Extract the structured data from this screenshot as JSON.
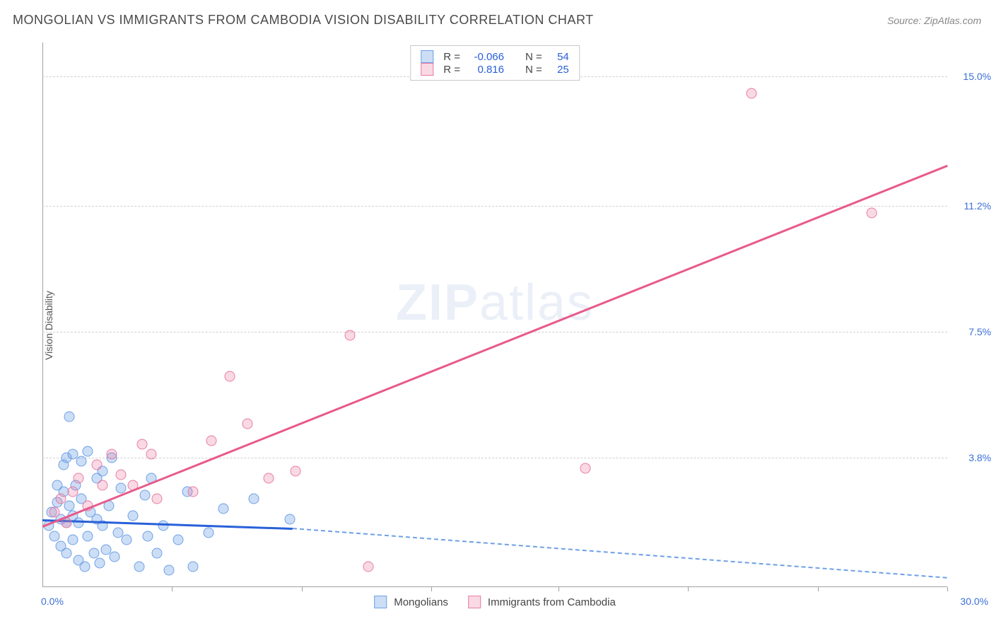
{
  "header": {
    "title": "MONGOLIAN VS IMMIGRANTS FROM CAMBODIA VISION DISABILITY CORRELATION CHART",
    "source": "Source: ZipAtlas.com"
  },
  "ylabel": "Vision Disability",
  "watermark": {
    "zip": "ZIP",
    "atlas": "atlas"
  },
  "axes": {
    "xlim": [
      0,
      30
    ],
    "ylim": [
      0,
      16
    ],
    "x_origin_label": "0.0%",
    "x_max_label": "30.0%",
    "y_ticks": [
      {
        "value": 3.8,
        "label": "3.8%"
      },
      {
        "value": 7.5,
        "label": "7.5%"
      },
      {
        "value": 11.2,
        "label": "11.2%"
      },
      {
        "value": 15.0,
        "label": "15.0%"
      }
    ],
    "x_tick_positions": [
      4.3,
      8.6,
      12.9,
      17.1,
      21.4,
      25.7,
      30.0
    ],
    "grid_color": "#d0d0d0",
    "axis_color": "#a0a0a0"
  },
  "colors": {
    "series1_fill": "rgba(110,160,230,0.35)",
    "series1_stroke": "#6ea0e6",
    "series1_line": "#2860d8",
    "series1_dash_line": "#6ea0e6",
    "series2_fill": "rgba(235,130,165,0.30)",
    "series2_stroke": "#e87ca4",
    "series2_line": "#e85a8a",
    "text_blue": "#2860d8"
  },
  "legend_top": {
    "rows": [
      {
        "swatch_fill": "rgba(110,160,230,0.35)",
        "swatch_stroke": "#6ea0e6",
        "r_label": "R =",
        "r_value": "-0.066",
        "n_label": "N =",
        "n_value": "54"
      },
      {
        "swatch_fill": "rgba(235,130,165,0.30)",
        "swatch_stroke": "#e87ca4",
        "r_label": "R =",
        "r_value": "0.816",
        "n_label": "N =",
        "n_value": "25"
      }
    ]
  },
  "legend_bottom": {
    "items": [
      {
        "swatch_fill": "rgba(110,160,230,0.35)",
        "swatch_stroke": "#6ea0e6",
        "label": "Mongolians"
      },
      {
        "swatch_fill": "rgba(235,130,165,0.30)",
        "swatch_stroke": "#e87ca4",
        "label": "Immigrants from Cambodia"
      }
    ]
  },
  "series": [
    {
      "name": "Mongolians",
      "fill": "rgba(110,160,230,0.35)",
      "stroke": "#6ea0e6",
      "trend": {
        "x1": 0,
        "y1": 2.0,
        "x2": 8.3,
        "y2": 1.75,
        "solid_color": "#2860d8",
        "extend_to_x": 30,
        "extend_y": 0.3,
        "dash_color": "#6ea0e6"
      },
      "points": [
        [
          0.2,
          1.8
        ],
        [
          0.3,
          2.2
        ],
        [
          0.4,
          1.5
        ],
        [
          0.5,
          2.5
        ],
        [
          0.5,
          3.0
        ],
        [
          0.6,
          1.2
        ],
        [
          0.6,
          2.0
        ],
        [
          0.7,
          2.8
        ],
        [
          0.7,
          3.6
        ],
        [
          0.8,
          1.0
        ],
        [
          0.8,
          1.9
        ],
        [
          0.8,
          3.8
        ],
        [
          0.9,
          5.0
        ],
        [
          0.9,
          2.4
        ],
        [
          1.0,
          1.4
        ],
        [
          1.0,
          2.1
        ],
        [
          1.0,
          3.9
        ],
        [
          1.1,
          3.0
        ],
        [
          1.2,
          0.8
        ],
        [
          1.2,
          1.9
        ],
        [
          1.3,
          2.6
        ],
        [
          1.3,
          3.7
        ],
        [
          1.4,
          0.6
        ],
        [
          1.5,
          1.5
        ],
        [
          1.5,
          4.0
        ],
        [
          1.6,
          2.2
        ],
        [
          1.7,
          1.0
        ],
        [
          1.8,
          3.2
        ],
        [
          1.8,
          2.0
        ],
        [
          1.9,
          0.7
        ],
        [
          2.0,
          1.8
        ],
        [
          2.0,
          3.4
        ],
        [
          2.1,
          1.1
        ],
        [
          2.2,
          2.4
        ],
        [
          2.3,
          3.8
        ],
        [
          2.4,
          0.9
        ],
        [
          2.5,
          1.6
        ],
        [
          2.6,
          2.9
        ],
        [
          2.8,
          1.4
        ],
        [
          3.0,
          2.1
        ],
        [
          3.2,
          0.6
        ],
        [
          3.4,
          2.7
        ],
        [
          3.5,
          1.5
        ],
        [
          3.6,
          3.2
        ],
        [
          3.8,
          1.0
        ],
        [
          4.0,
          1.8
        ],
        [
          4.2,
          0.5
        ],
        [
          4.5,
          1.4
        ],
        [
          4.8,
          2.8
        ],
        [
          5.0,
          0.6
        ],
        [
          5.5,
          1.6
        ],
        [
          6.0,
          2.3
        ],
        [
          7.0,
          2.6
        ],
        [
          8.2,
          2.0
        ]
      ]
    },
    {
      "name": "Immigrants from Cambodia",
      "fill": "rgba(235,130,165,0.30)",
      "stroke": "#e87ca4",
      "trend": {
        "x1": 0,
        "y1": 1.8,
        "x2": 30,
        "y2": 12.4,
        "solid_color": "#e85a8a"
      },
      "points": [
        [
          0.4,
          2.2
        ],
        [
          0.6,
          2.6
        ],
        [
          0.8,
          1.9
        ],
        [
          1.0,
          2.8
        ],
        [
          1.2,
          3.2
        ],
        [
          1.5,
          2.4
        ],
        [
          1.8,
          3.6
        ],
        [
          2.0,
          3.0
        ],
        [
          2.3,
          3.9
        ],
        [
          2.6,
          3.3
        ],
        [
          3.0,
          3.0
        ],
        [
          3.3,
          4.2
        ],
        [
          3.6,
          3.9
        ],
        [
          3.8,
          2.6
        ],
        [
          5.0,
          2.8
        ],
        [
          5.6,
          4.3
        ],
        [
          6.2,
          6.2
        ],
        [
          6.8,
          4.8
        ],
        [
          7.5,
          3.2
        ],
        [
          8.4,
          3.4
        ],
        [
          10.2,
          7.4
        ],
        [
          10.8,
          0.6
        ],
        [
          18.0,
          3.5
        ],
        [
          23.5,
          14.5
        ],
        [
          27.5,
          11.0
        ]
      ]
    }
  ]
}
